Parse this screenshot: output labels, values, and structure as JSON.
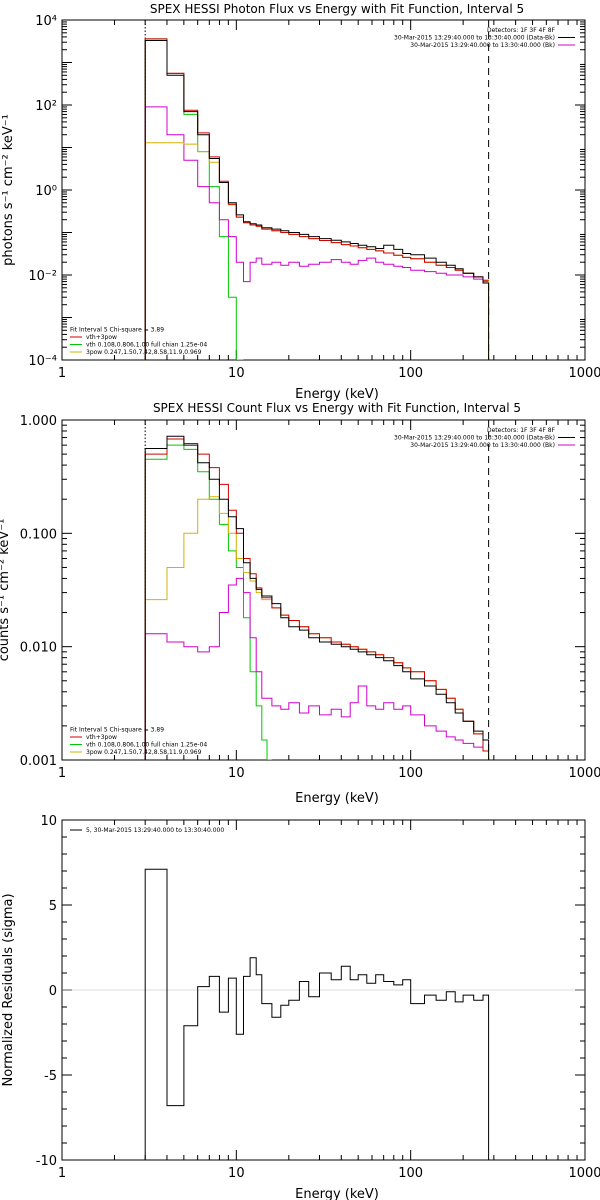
{
  "colors": {
    "data": "#000000",
    "total": "#d00000",
    "thermal": "#00c800",
    "powerlaw": "#d8b000",
    "background": "#d000d0",
    "axes": "#000000"
  },
  "chart_data": [
    {
      "type": "line",
      "title": "SPEX HESSI Photon Flux vs Energy with Fit Function, Interval 5",
      "xlabel": "Energy (keV)",
      "ylabel": "photons s⁻¹ cm⁻² keV⁻¹",
      "xscale": "log",
      "yscale": "log",
      "xlim": [
        1,
        1000
      ],
      "ylim": [
        0.0001,
        10000
      ],
      "xticks": [
        {
          "v": 1,
          "label": "1"
        },
        {
          "v": 10,
          "label": "10"
        },
        {
          "v": 100,
          "label": "100"
        },
        {
          "v": 1000,
          "label": "1000"
        }
      ],
      "yticks": [
        {
          "v": 0.0001,
          "label": "10⁻⁴"
        },
        {
          "v": 0.01,
          "label": "10⁻²"
        },
        {
          "v": 1,
          "label": "10⁰"
        },
        {
          "v": 100,
          "label": "10²"
        },
        {
          "v": 10000,
          "label": "10⁴"
        }
      ],
      "vlines": [
        {
          "x": 3.0,
          "style": "dotted"
        },
        {
          "x": 280,
          "style": "dashed"
        }
      ],
      "legend_right": {
        "placement": "top-right",
        "lines": [
          {
            "text": "Detectors: 1F 3F 4F 8F",
            "color": "",
            "sample": false
          },
          {
            "text": "30-Mar-2015 13:29:40.000 to 13:30:40.000 (Data-Bk)",
            "color": "#000000",
            "sample": true
          },
          {
            "text": "30-Mar-2015 13:29:40.000 to 13:30:40.000 (Bk)",
            "color": "#d000d0",
            "sample": true
          }
        ]
      },
      "legend_left": {
        "placement": "bottom-left",
        "lines": [
          {
            "text": "Fit Interval 5   Chi-square = 3.89",
            "color": "",
            "sample": false
          },
          {
            "text": "vth+3pow",
            "color": "#d00000",
            "sample": true
          },
          {
            "text": "vth 0.108,0.806,1.00  full chian 1.25e-04",
            "color": "#00c800",
            "sample": true
          },
          {
            "text": "3pow 0.247,1.50,7.42,8.58,11.9,0.969",
            "color": "#d8b000",
            "sample": true
          }
        ]
      },
      "series": [
        {
          "key": "thermal",
          "color": "#00c800",
          "edges": [
            3,
            4,
            5,
            6,
            7,
            8,
            9,
            10,
            11
          ],
          "values": [
            3600,
            550,
            60,
            8,
            1.2,
            0.08,
            0.003,
            0.0001
          ],
          "drop_to_floor": true,
          "floor": 0.0001
        },
        {
          "key": "background",
          "color": "#d000d0",
          "edges": [
            3,
            4,
            5,
            6,
            7,
            8,
            9,
            10,
            11,
            12,
            13,
            14,
            16,
            18,
            20,
            23,
            26,
            30,
            35,
            40,
            45,
            50,
            56,
            63,
            70,
            80,
            90,
            100,
            120,
            140,
            160,
            180,
            200,
            230,
            260,
            280
          ],
          "values": [
            90,
            20,
            5,
            1.2,
            0.5,
            0.2,
            0.08,
            0.02,
            0.007,
            0.02,
            0.025,
            0.018,
            0.02,
            0.017,
            0.02,
            0.016,
            0.018,
            0.02,
            0.023,
            0.02,
            0.018,
            0.022,
            0.025,
            0.02,
            0.018,
            0.016,
            0.015,
            0.013,
            0.012,
            0.011,
            0.01,
            0.01,
            0.009,
            0.008,
            0.007
          ]
        },
        {
          "key": "powerlaw",
          "color": "#d8b000",
          "edges": [
            3,
            4,
            5,
            6,
            7,
            8,
            9,
            10,
            11,
            12,
            13,
            14,
            16,
            18,
            20,
            23,
            26,
            30,
            35,
            40,
            45,
            50,
            56,
            63,
            70,
            80,
            90,
            100,
            120,
            140,
            160,
            180,
            200,
            230,
            260,
            280
          ],
          "values": [
            13,
            13,
            12,
            8,
            4.5,
            1.5,
            0.45,
            0.23,
            0.17,
            0.15,
            0.14,
            0.12,
            0.11,
            0.1,
            0.09,
            0.08,
            0.072,
            0.065,
            0.058,
            0.052,
            0.048,
            0.044,
            0.04,
            0.037,
            0.033,
            0.029,
            0.026,
            0.024,
            0.02,
            0.017,
            0.015,
            0.013,
            0.011,
            0.009,
            0.0075
          ],
          "drop_to_floor": true,
          "floor": 0.0001
        },
        {
          "key": "total",
          "color": "#d00000",
          "edges": [
            3,
            4,
            5,
            6,
            7,
            8,
            9,
            10,
            11,
            12,
            13,
            14,
            16,
            18,
            20,
            23,
            26,
            30,
            35,
            40,
            45,
            50,
            56,
            63,
            70,
            80,
            90,
            100,
            120,
            140,
            160,
            180,
            200,
            230,
            260,
            280
          ],
          "values": [
            3600,
            560,
            75,
            22,
            6,
            1.6,
            0.46,
            0.23,
            0.17,
            0.15,
            0.14,
            0.12,
            0.11,
            0.1,
            0.09,
            0.08,
            0.072,
            0.065,
            0.058,
            0.052,
            0.048,
            0.044,
            0.04,
            0.037,
            0.033,
            0.029,
            0.026,
            0.024,
            0.02,
            0.017,
            0.015,
            0.013,
            0.011,
            0.009,
            0.0075
          ]
        },
        {
          "key": "data",
          "color": "#000000",
          "edges": [
            3,
            4,
            5,
            6,
            7,
            8,
            9,
            10,
            11,
            12,
            13,
            14,
            16,
            18,
            20,
            23,
            26,
            30,
            35,
            40,
            45,
            50,
            56,
            63,
            70,
            80,
            90,
            100,
            120,
            140,
            160,
            180,
            200,
            230,
            260,
            280
          ],
          "values": [
            3300,
            500,
            70,
            20,
            5.5,
            1.5,
            0.5,
            0.26,
            0.18,
            0.16,
            0.15,
            0.13,
            0.12,
            0.11,
            0.1,
            0.09,
            0.08,
            0.072,
            0.066,
            0.06,
            0.055,
            0.05,
            0.046,
            0.042,
            0.05,
            0.04,
            0.032,
            0.03,
            0.025,
            0.02,
            0.017,
            0.014,
            0.011,
            0.009,
            0.0065
          ],
          "drop_to_floor": true,
          "floor": 0.0001
        }
      ]
    },
    {
      "type": "line",
      "title": "SPEX HESSI Count Flux vs Energy with Fit Function, Interval 5",
      "xlabel": "Energy (keV)",
      "ylabel": "counts s⁻¹ cm⁻² keV⁻¹",
      "xscale": "log",
      "yscale": "log",
      "xlim": [
        1,
        1000
      ],
      "ylim": [
        0.001,
        1.0
      ],
      "xticks": [
        {
          "v": 1,
          "label": "1"
        },
        {
          "v": 10,
          "label": "10"
        },
        {
          "v": 100,
          "label": "100"
        },
        {
          "v": 1000,
          "label": "1000"
        }
      ],
      "yticks": [
        {
          "v": 0.001,
          "label": "0.001"
        },
        {
          "v": 0.01,
          "label": "0.010"
        },
        {
          "v": 0.1,
          "label": "0.100"
        },
        {
          "v": 1.0,
          "label": "1.000"
        }
      ],
      "vlines": [
        {
          "x": 3.0,
          "style": "dotted"
        },
        {
          "x": 280,
          "style": "dashed"
        }
      ],
      "legend_right": {
        "placement": "top-right",
        "lines": [
          {
            "text": "Detectors: 1F 3F 4F 8F",
            "color": "",
            "sample": false
          },
          {
            "text": "30-Mar-2015 13:29:40.000 to 13:30:40.000 (Data-Bk)",
            "color": "#000000",
            "sample": true
          },
          {
            "text": "30-Mar-2015 13:29:40.000 to 13:30:40.000 (Bk)",
            "color": "#d000d0",
            "sample": true
          }
        ]
      },
      "legend_left": {
        "placement": "bottom-left",
        "lines": [
          {
            "text": "Fit Interval 5   Chi-square = 3.89",
            "color": "",
            "sample": false
          },
          {
            "text": "vth+3pow",
            "color": "#d00000",
            "sample": true
          },
          {
            "text": "vth 0.108,0.806,1.00  full chian 1.25e-04",
            "color": "#00c800",
            "sample": true
          },
          {
            "text": "3pow 0.247,1.50,7.42,8.58,11.9,0.969",
            "color": "#d8b000",
            "sample": true
          }
        ]
      },
      "series": [
        {
          "key": "thermal",
          "color": "#00c800",
          "edges": [
            3,
            4,
            5,
            6,
            7,
            8,
            9,
            10,
            11,
            12,
            13,
            14,
            15,
            16
          ],
          "values": [
            0.45,
            0.6,
            0.55,
            0.35,
            0.2,
            0.12,
            0.07,
            0.05,
            0.018,
            0.006,
            0.003,
            0.0015,
            0.001
          ],
          "drop_to_floor": true,
          "floor": 0.001
        },
        {
          "key": "powerlaw",
          "color": "#d8b000",
          "edges": [
            3,
            4,
            5,
            6,
            7,
            8,
            9,
            10,
            11,
            12,
            13,
            14,
            16,
            18,
            20,
            23,
            26,
            30,
            35,
            40,
            45,
            50,
            56,
            63,
            70,
            80,
            90,
            100,
            120,
            140,
            160,
            180,
            200,
            230,
            260,
            280
          ],
          "values": [
            0.026,
            0.05,
            0.1,
            0.2,
            0.21,
            0.15,
            0.1,
            0.06,
            0.045,
            0.038,
            0.03,
            0.026,
            0.022,
            0.019,
            0.017,
            0.015,
            0.013,
            0.012,
            0.011,
            0.0105,
            0.01,
            0.0095,
            0.009,
            0.0085,
            0.008,
            0.0072,
            0.0065,
            0.006,
            0.005,
            0.0042,
            0.0035,
            0.0028,
            0.0022,
            0.0017,
            0.0012
          ],
          "drop_to_floor": true,
          "floor": 0.001
        },
        {
          "key": "background",
          "color": "#d000d0",
          "edges": [
            3,
            4,
            5,
            6,
            7,
            8,
            9,
            10,
            11,
            12,
            13,
            14,
            16,
            18,
            20,
            23,
            26,
            30,
            35,
            40,
            45,
            50,
            56,
            63,
            70,
            80,
            90,
            100,
            120,
            140,
            160,
            180,
            200,
            230,
            260,
            280
          ],
          "values": [
            0.013,
            0.011,
            0.01,
            0.009,
            0.01,
            0.02,
            0.035,
            0.04,
            0.03,
            0.012,
            0.006,
            0.0035,
            0.003,
            0.0028,
            0.0032,
            0.0026,
            0.003,
            0.0025,
            0.0028,
            0.0024,
            0.0032,
            0.0045,
            0.003,
            0.0028,
            0.0032,
            0.0028,
            0.003,
            0.0025,
            0.002,
            0.0018,
            0.0016,
            0.0015,
            0.0014,
            0.0013,
            0.0012
          ]
        },
        {
          "key": "total",
          "color": "#d00000",
          "edges": [
            3,
            4,
            5,
            6,
            7,
            8,
            9,
            10,
            11,
            12,
            13,
            14,
            16,
            18,
            20,
            23,
            26,
            30,
            35,
            40,
            45,
            50,
            56,
            63,
            70,
            80,
            90,
            100,
            120,
            140,
            160,
            180,
            200,
            230,
            260,
            280
          ],
          "values": [
            0.5,
            0.68,
            0.62,
            0.5,
            0.38,
            0.27,
            0.16,
            0.1,
            0.06,
            0.044,
            0.033,
            0.027,
            0.022,
            0.019,
            0.017,
            0.015,
            0.013,
            0.012,
            0.011,
            0.0105,
            0.01,
            0.0095,
            0.009,
            0.0085,
            0.008,
            0.0072,
            0.0065,
            0.006,
            0.005,
            0.0042,
            0.0035,
            0.0028,
            0.0022,
            0.0017,
            0.0012
          ]
        },
        {
          "key": "data",
          "color": "#000000",
          "edges": [
            3,
            4,
            5,
            6,
            7,
            8,
            9,
            10,
            11,
            12,
            13,
            14,
            16,
            18,
            20,
            23,
            26,
            30,
            35,
            40,
            45,
            50,
            56,
            63,
            70,
            80,
            90,
            100,
            120,
            140,
            160,
            180,
            200,
            230,
            260,
            280
          ],
          "values": [
            0.56,
            0.72,
            0.6,
            0.42,
            0.3,
            0.2,
            0.14,
            0.11,
            0.055,
            0.04,
            0.032,
            0.028,
            0.024,
            0.018,
            0.015,
            0.014,
            0.012,
            0.011,
            0.0105,
            0.01,
            0.0095,
            0.009,
            0.0085,
            0.008,
            0.0075,
            0.0068,
            0.006,
            0.0052,
            0.0045,
            0.0038,
            0.0032,
            0.0026,
            0.0022,
            0.0018,
            0.0015
          ],
          "drop_to_floor": true,
          "floor": 0.001
        }
      ]
    },
    {
      "type": "line",
      "title": "",
      "xlabel": "Energy (keV)",
      "ylabel": "Normalized Residuals (sigma)",
      "xscale": "log",
      "yscale": "linear",
      "xlim": [
        1,
        1000
      ],
      "ylim": [
        -10,
        10
      ],
      "xticks": [
        {
          "v": 1,
          "label": "1"
        },
        {
          "v": 10,
          "label": "10"
        },
        {
          "v": 100,
          "label": "100"
        },
        {
          "v": 1000,
          "label": "1000"
        }
      ],
      "yticks": [
        {
          "v": -10,
          "label": "-10"
        },
        {
          "v": -5,
          "label": "-5"
        },
        {
          "v": 0,
          "label": "0"
        },
        {
          "v": 5,
          "label": "5"
        },
        {
          "v": 10,
          "label": "10"
        }
      ],
      "vlines": [],
      "legend_right": null,
      "legend_left": {
        "placement": "top-left",
        "lines": [
          {
            "text": "5, 30-Mar-2015 13:29:40.000 to 13:30:40.000",
            "color": "#000000",
            "sample": true
          }
        ]
      },
      "series": [
        {
          "key": "residuals",
          "color": "#000000",
          "edges": [
            3,
            4,
            5,
            6,
            7,
            8,
            9,
            10,
            11,
            12,
            13,
            14,
            16,
            18,
            20,
            23,
            26,
            30,
            35,
            40,
            45,
            50,
            56,
            63,
            70,
            80,
            90,
            100,
            120,
            140,
            160,
            180,
            200,
            230,
            260,
            280
          ],
          "values": [
            7.1,
            -6.8,
            -2.1,
            0.2,
            0.8,
            -1.3,
            0.7,
            -2.6,
            0.8,
            1.9,
            0.9,
            -0.8,
            -1.6,
            -0.9,
            -0.6,
            0.5,
            -0.4,
            1.0,
            0.6,
            1.4,
            0.6,
            0.9,
            0.4,
            0.9,
            0.5,
            0.3,
            0.6,
            -0.8,
            -0.3,
            -0.6,
            -0.1,
            -0.7,
            -0.3,
            -0.6,
            -0.3
          ],
          "drop_to_floor": true,
          "floor": -10
        }
      ]
    }
  ]
}
